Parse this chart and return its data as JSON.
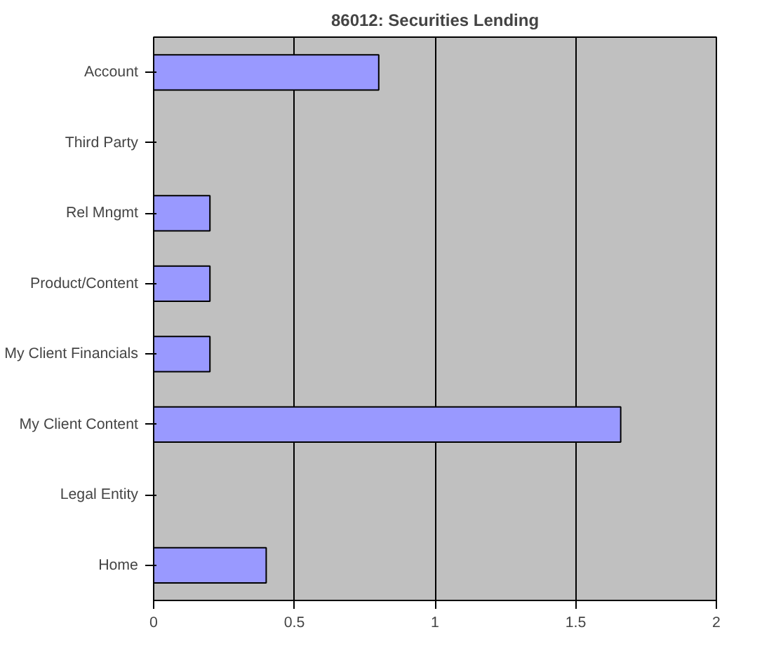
{
  "chart_data": {
    "type": "bar",
    "orientation": "horizontal",
    "title": "86012: Securities Lending",
    "categories": [
      "Account",
      "Third Party",
      "Rel Mngmt",
      "Product/Content",
      "My Client Financials",
      "My Client Content",
      "Legal Entity",
      "Home"
    ],
    "values": [
      0.8,
      null,
      0.2,
      0.2,
      0.2,
      1.66,
      null,
      0.4
    ],
    "color": "#9999ff",
    "xlim": [
      0,
      2
    ],
    "xticks": [
      0,
      0.5,
      1,
      1.5,
      2
    ],
    "grid": "x"
  }
}
